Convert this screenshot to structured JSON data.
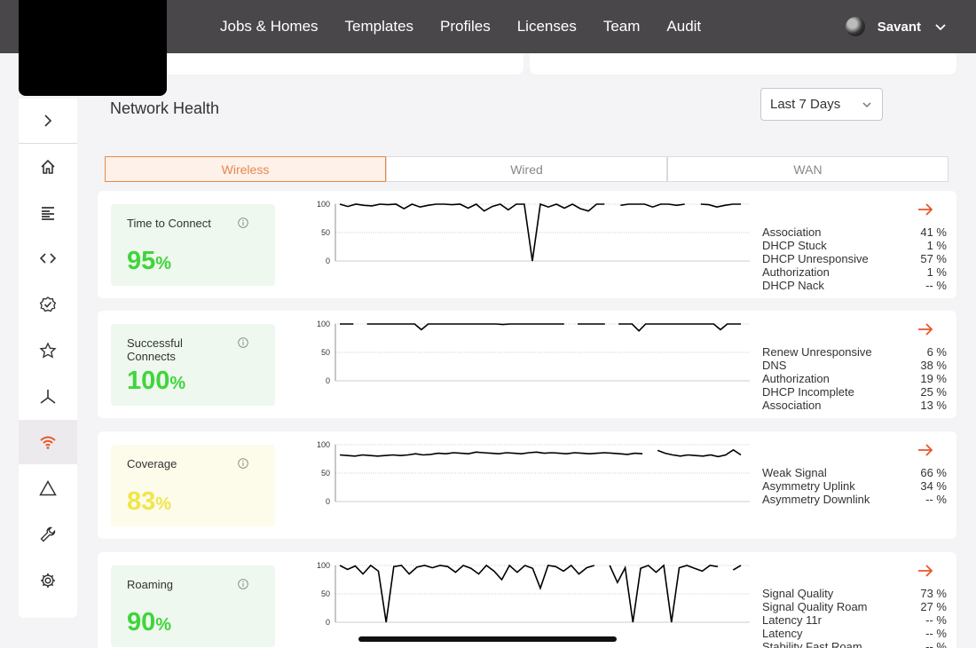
{
  "nav": {
    "items": [
      "Jobs & Homes",
      "Templates",
      "Profiles",
      "Licenses",
      "Team",
      "Audit"
    ],
    "user": "Savant"
  },
  "section_title": "Network Health",
  "range": "Last 7 Days",
  "tabs": [
    "Wireless",
    "Wired",
    "WAN"
  ],
  "active_tab": "Wireless",
  "sidebar": {
    "icons": [
      "expand-icon",
      "home-icon",
      "list-icon",
      "code-icon",
      "verified-icon",
      "star-icon",
      "network-icon",
      "wifi-icon",
      "warning-icon",
      "wrench-icon",
      "settings-icon"
    ],
    "active": "wifi-icon"
  },
  "chart_axis": {
    "ticks": [
      "100",
      "50",
      "0"
    ],
    "ylim": [
      0,
      100
    ]
  },
  "metrics": [
    {
      "label": "Time to Connect",
      "value": "95",
      "unit": "%",
      "color": "#3fd53a",
      "reasons": [
        {
          "name": "Association",
          "value": "41 %"
        },
        {
          "name": "DHCP Stuck",
          "value": "1 %"
        },
        {
          "name": "DHCP Unresponsive",
          "value": "57 %"
        },
        {
          "name": "Authorization",
          "value": "1 %"
        },
        {
          "name": "DHCP Nack",
          "value": "-- %"
        }
      ]
    },
    {
      "label": "Successful Connects",
      "value": "100",
      "unit": "%",
      "color": "#3fd53a",
      "reasons": [
        {
          "name": "Renew Unresponsive",
          "value": "6 %"
        },
        {
          "name": "DNS",
          "value": "38 %"
        },
        {
          "name": "Authorization",
          "value": "19 %"
        },
        {
          "name": "DHCP Incomplete",
          "value": "25 %"
        },
        {
          "name": "Association",
          "value": "13 %"
        }
      ]
    },
    {
      "label": "Coverage",
      "value": "83",
      "unit": "%",
      "color": "#f0e64a",
      "reasons": [
        {
          "name": "Weak Signal",
          "value": "66 %"
        },
        {
          "name": "Asymmetry Uplink",
          "value": "34 %"
        },
        {
          "name": "Asymmetry Downlink",
          "value": "-- %"
        }
      ]
    },
    {
      "label": "Roaming",
      "value": "90",
      "unit": "%",
      "color": "#3fd53a",
      "reasons": [
        {
          "name": "Signal Quality",
          "value": "73 %"
        },
        {
          "name": "Signal Quality Roam",
          "value": "27 %"
        },
        {
          "name": "Latency 11r",
          "value": "-- %"
        },
        {
          "name": "Latency",
          "value": "-- %"
        },
        {
          "name": "Stability Fast Roam",
          "value": "-- %"
        }
      ]
    }
  ],
  "chart_data": [
    {
      "type": "line",
      "ylim": [
        0,
        100
      ],
      "y": [
        100,
        96,
        100,
        98,
        97,
        100,
        99,
        100,
        92,
        100,
        95,
        98,
        100,
        100,
        99,
        100,
        93,
        100,
        88,
        96,
        100,
        90,
        100,
        100,
        0,
        100,
        95,
        100,
        93,
        100,
        92,
        88,
        100,
        100,
        null,
        98,
        100,
        100,
        100,
        95,
        100,
        100,
        98,
        100,
        null,
        100,
        99,
        95,
        98,
        100,
        100
      ]
    },
    {
      "type": "line",
      "ylim": [
        0,
        100
      ],
      "y": [
        100,
        100,
        100,
        null,
        100,
        100,
        100,
        100,
        100,
        100,
        100,
        100,
        90,
        100,
        100,
        100,
        100,
        100,
        100,
        100,
        100,
        100,
        100,
        100,
        99,
        100,
        100,
        100,
        100,
        100,
        100,
        100,
        100,
        100,
        null,
        100,
        100,
        100,
        100,
        100,
        null,
        100,
        100,
        100,
        88,
        100,
        100,
        100,
        100,
        100,
        100,
        100,
        100,
        100,
        100,
        100,
        90,
        100,
        100,
        100
      ]
    },
    {
      "type": "line",
      "ylim": [
        0,
        100
      ],
      "y": [
        82,
        81,
        80,
        82,
        81,
        80,
        81,
        82,
        81,
        82,
        84,
        82,
        83,
        85,
        84,
        86,
        85,
        84,
        87,
        86,
        85,
        84,
        86,
        85,
        84,
        86,
        87,
        85,
        86,
        85,
        84,
        86,
        85,
        84,
        85,
        86,
        85,
        84,
        83,
        85,
        84,
        null,
        90,
        85,
        82,
        80,
        82,
        81,
        80,
        82,
        79,
        82,
        91,
        82
      ]
    },
    {
      "type": "line",
      "ylim": [
        0,
        100
      ],
      "y": [
        100,
        93,
        99,
        85,
        100,
        90,
        0,
        98,
        100,
        85,
        97,
        100,
        96,
        100,
        98,
        88,
        100,
        95,
        85,
        100,
        90,
        75,
        100,
        88,
        100,
        95,
        60,
        100,
        98,
        90,
        100,
        85,
        96,
        100,
        null,
        100,
        70,
        96,
        0,
        95,
        100,
        88,
        100,
        0,
        96,
        100,
        95,
        90,
        100,
        98,
        null,
        92,
        100
      ]
    }
  ]
}
